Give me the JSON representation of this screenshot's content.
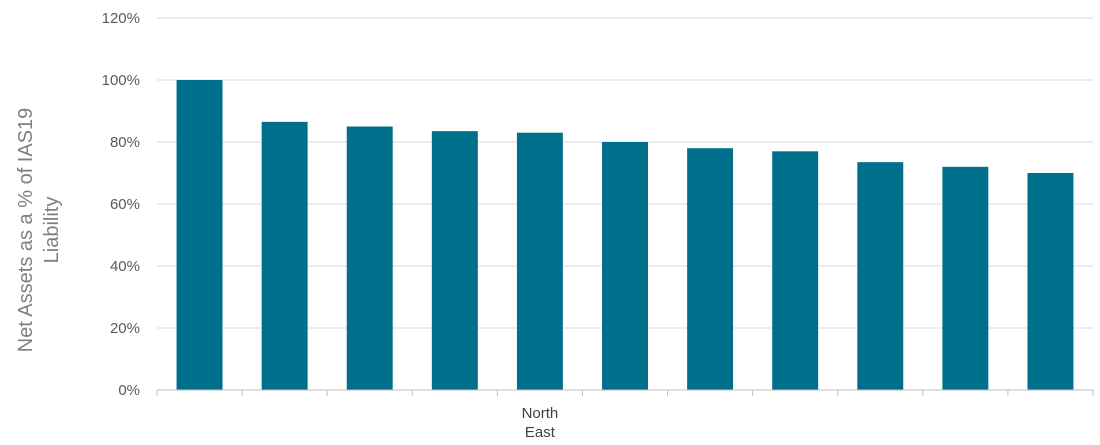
{
  "chart_data": {
    "type": "bar",
    "categories": [
      "",
      "",
      "",
      "",
      "North East",
      "",
      "",
      "",
      "",
      "",
      ""
    ],
    "category_label_lines": [
      "North",
      "East"
    ],
    "values": [
      100,
      86.5,
      85,
      83.5,
      83,
      80,
      78,
      77,
      73.5,
      72,
      70
    ],
    "title": "",
    "xlabel": "",
    "ylabel_lines": [
      "Net Assets as a % of IAS19",
      "Liability"
    ],
    "ylim": [
      0,
      120
    ],
    "yticks": [
      0,
      20,
      40,
      60,
      80,
      100,
      120
    ],
    "ytick_labels": [
      "0%",
      "20%",
      "40%",
      "60%",
      "80%",
      "100%",
      "120%"
    ],
    "grid": "horizontal",
    "legend": "none",
    "colors": {
      "bar": "#006f8c",
      "grid": "#d9d9d9",
      "axis": "#bfbfbf"
    }
  }
}
